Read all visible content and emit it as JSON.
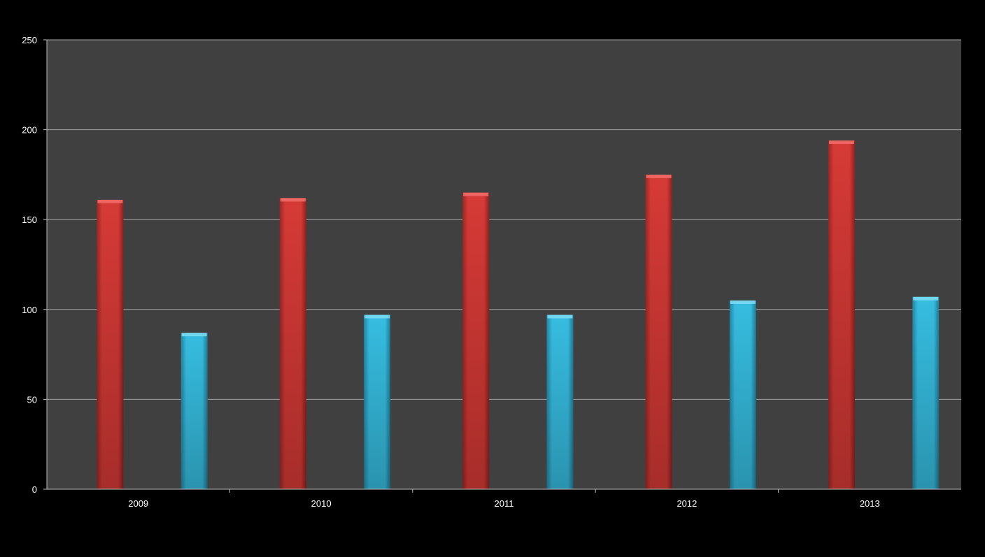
{
  "chart_data": {
    "type": "bar",
    "categories": [
      "2009",
      "2010",
      "2011",
      "2012",
      "2013"
    ],
    "series": [
      {
        "values": [
          161,
          162,
          165,
          175,
          194
        ],
        "color": "#d63a36"
      },
      {
        "values": [
          87,
          97,
          97,
          105,
          107
        ],
        "color": "#36bde0"
      }
    ],
    "ylim": [
      0,
      250
    ],
    "yticks": [
      0,
      50,
      100,
      150,
      200,
      250
    ],
    "grid": true,
    "legend": "none",
    "colors": {
      "plot_background": "#404040",
      "page_background": "#000000",
      "gridline": "#a6a6a6",
      "axis": "#bfbfbf",
      "text": "#ffffff"
    }
  }
}
